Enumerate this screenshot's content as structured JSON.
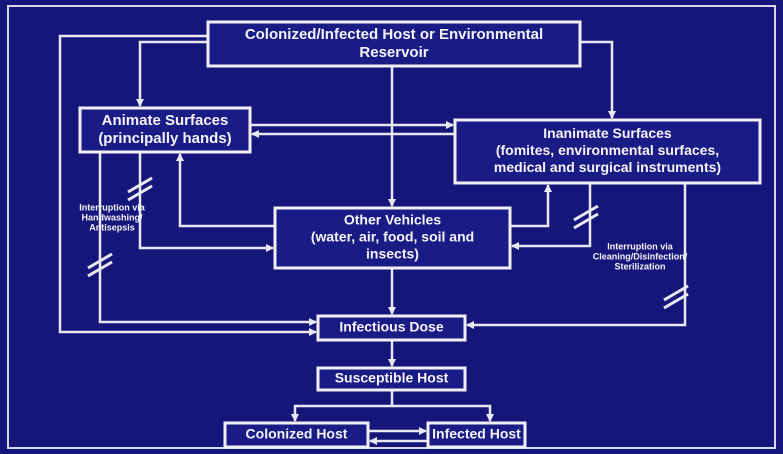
{
  "nodes": [
    {
      "id": "reservoir",
      "lines": [
        "Colonized/Infected Host or Environmental",
        "Reservoir"
      ]
    },
    {
      "id": "animate",
      "lines": [
        "Animate Surfaces",
        "(principally hands)"
      ]
    },
    {
      "id": "inanimate",
      "lines": [
        "Inanimate Surfaces",
        "(fomites, environmental surfaces,",
        "medical and surgical instruments)"
      ]
    },
    {
      "id": "other",
      "lines": [
        "Other Vehicles",
        "(water, air, food, soil and",
        "insects)"
      ]
    },
    {
      "id": "dose",
      "lines": [
        "Infectious Dose"
      ]
    },
    {
      "id": "susceptible",
      "lines": [
        "Susceptible Host"
      ]
    },
    {
      "id": "colonized",
      "lines": [
        "Colonized Host"
      ]
    },
    {
      "id": "infected",
      "lines": [
        "Infected Host"
      ]
    }
  ],
  "annotations": [
    {
      "lines": [
        "Interruption via",
        "Handwashing/",
        "Antisepsis"
      ]
    },
    {
      "lines": [
        "Interruption via",
        "Cleaning/Disinfection/",
        "Sterilization"
      ]
    }
  ]
}
